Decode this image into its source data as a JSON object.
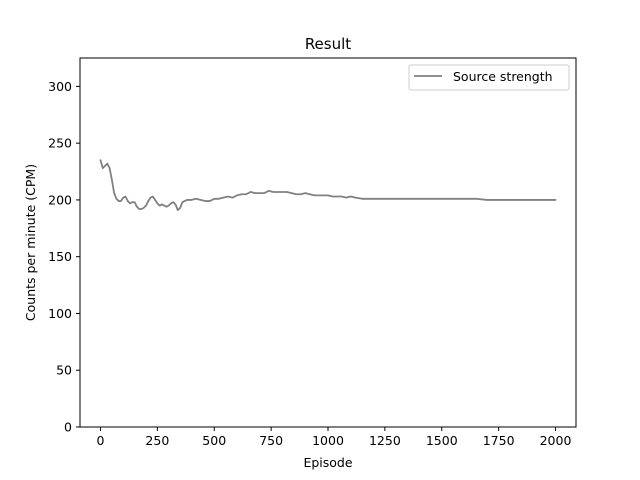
{
  "chart_data": {
    "type": "line",
    "title": "Result",
    "xlabel": "Episode",
    "ylabel": "Counts per minute (CPM)",
    "xlim": [
      -90,
      2090
    ],
    "ylim": [
      0,
      325
    ],
    "xticks": [
      0,
      250,
      500,
      750,
      1000,
      1250,
      1500,
      1750,
      2000
    ],
    "yticks": [
      0,
      50,
      100,
      150,
      200,
      250,
      300
    ],
    "grid": false,
    "legend_position": "top-right",
    "series": [
      {
        "name": "Source strength",
        "color": "#808080",
        "x": [
          0,
          10,
          20,
          30,
          40,
          50,
          60,
          70,
          80,
          90,
          100,
          110,
          120,
          130,
          140,
          150,
          160,
          170,
          180,
          190,
          200,
          210,
          220,
          230,
          240,
          250,
          260,
          270,
          280,
          290,
          300,
          310,
          320,
          330,
          340,
          350,
          360,
          380,
          400,
          420,
          440,
          460,
          480,
          500,
          520,
          540,
          560,
          580,
          600,
          620,
          640,
          660,
          680,
          700,
          720,
          740,
          760,
          780,
          800,
          820,
          840,
          860,
          880,
          900,
          920,
          940,
          960,
          980,
          1000,
          1020,
          1040,
          1060,
          1080,
          1100,
          1120,
          1150,
          1200,
          1250,
          1300,
          1350,
          1400,
          1450,
          1500,
          1550,
          1600,
          1650,
          1700,
          1750,
          1800,
          1850,
          1900,
          1950,
          2000
        ],
        "values": [
          235,
          228,
          230,
          232,
          228,
          218,
          206,
          201,
          199,
          199,
          202,
          203,
          199,
          197,
          198,
          198,
          194,
          192,
          192,
          193,
          195,
          199,
          202,
          203,
          200,
          197,
          195,
          196,
          195,
          194,
          195,
          197,
          198,
          196,
          191,
          193,
          198,
          200,
          200,
          201,
          200,
          199,
          199,
          201,
          201,
          202,
          203,
          202,
          204,
          205,
          205,
          207,
          206,
          206,
          206,
          208,
          207,
          207,
          207,
          207,
          206,
          205,
          205,
          206,
          205,
          204,
          204,
          204,
          204,
          203,
          203,
          203,
          202,
          203,
          202,
          201,
          201,
          201,
          201,
          201,
          201,
          201,
          201,
          201,
          201,
          201,
          200,
          200,
          200,
          200,
          200,
          200,
          200
        ]
      }
    ]
  }
}
